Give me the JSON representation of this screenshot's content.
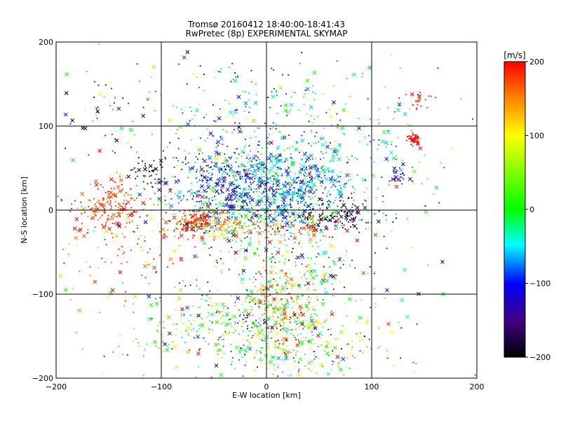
{
  "chart_data": {
    "type": "scatter",
    "title_line1": "Tromsø 20160412 18:40:00-18:41:43",
    "title_line2": "RwPretec (8p) EXPERIMENTAL SKYMAP",
    "xlabel": "E-W location [km]",
    "ylabel": "N-S location [km]",
    "xlim": [
      -200,
      200
    ],
    "ylim": [
      -200,
      200
    ],
    "xticks": [
      -200,
      -100,
      0,
      100,
      200
    ],
    "yticks": [
      -200,
      -100,
      0,
      100,
      200
    ],
    "grid": true,
    "colorbar": {
      "label": "[m/s]",
      "range": [
        -200,
        200
      ],
      "ticks": [
        200,
        100,
        0,
        -100,
        -200
      ]
    },
    "marker_types": [
      "dot",
      "cross"
    ],
    "clusters": [
      {
        "x": 0,
        "y": 20,
        "sx": 45,
        "sy": 30,
        "n": 700,
        "v": -60,
        "sv": 40
      },
      {
        "x": 25,
        "y": 30,
        "sx": 25,
        "sy": 25,
        "n": 250,
        "v": -70,
        "sv": 30
      },
      {
        "x": -20,
        "y": 35,
        "sx": 25,
        "sy": 20,
        "n": 150,
        "v": -130,
        "sv": 40
      },
      {
        "x": -65,
        "y": -15,
        "sx": 12,
        "sy": 8,
        "n": 130,
        "v": 190,
        "sv": 15
      },
      {
        "x": -150,
        "y": 5,
        "sx": 18,
        "sy": 15,
        "n": 180,
        "v": 180,
        "sv": 25
      },
      {
        "x": -35,
        "y": -15,
        "sx": 20,
        "sy": 10,
        "n": 130,
        "v": 90,
        "sv": 60
      },
      {
        "x": 60,
        "y": -5,
        "sx": 25,
        "sy": 10,
        "n": 120,
        "v": -200,
        "sv": 15
      },
      {
        "x": 30,
        "y": -25,
        "sx": 30,
        "sy": 8,
        "n": 80,
        "v": 170,
        "sv": 40
      },
      {
        "x": 15,
        "y": -110,
        "sx": 15,
        "sy": 25,
        "n": 170,
        "v": 150,
        "sv": 70
      },
      {
        "x": -30,
        "y": -140,
        "sx": 50,
        "sy": 25,
        "n": 350,
        "v": 10,
        "sv": 90
      },
      {
        "x": 30,
        "y": -160,
        "sx": 40,
        "sy": 25,
        "n": 250,
        "v": 20,
        "sv": 90
      },
      {
        "x": 30,
        "y": -70,
        "sx": 30,
        "sy": 20,
        "n": 120,
        "v": -30,
        "sv": 80
      },
      {
        "x": -60,
        "y": 30,
        "sx": 25,
        "sy": 30,
        "n": 140,
        "v": -120,
        "sv": 50
      },
      {
        "x": -110,
        "y": 45,
        "sx": 10,
        "sy": 8,
        "n": 40,
        "v": -190,
        "sv": 10
      },
      {
        "x": 139,
        "y": 85,
        "sx": 4,
        "sy": 3,
        "n": 40,
        "v": 200,
        "sv": 5
      },
      {
        "x": 140,
        "y": 130,
        "sx": 10,
        "sy": 6,
        "n": 25,
        "v": 200,
        "sv": 10
      },
      {
        "x": 125,
        "y": 40,
        "sx": 6,
        "sy": 5,
        "n": 25,
        "v": -150,
        "sv": 20
      },
      {
        "x": 120,
        "y": 75,
        "sx": 15,
        "sy": 20,
        "n": 40,
        "v": -40,
        "sv": 60
      },
      {
        "x": -130,
        "y": -40,
        "sx": 40,
        "sy": 30,
        "n": 120,
        "v": 170,
        "sv": 60
      },
      {
        "x": 0,
        "y": 120,
        "sx": 60,
        "sy": 30,
        "n": 180,
        "v": -40,
        "sv": 80
      },
      {
        "x": -150,
        "y": 130,
        "sx": 30,
        "sy": 30,
        "n": 40,
        "v": -100,
        "sv": 80
      },
      {
        "x": 0,
        "y": 0,
        "sx": 110,
        "sy": 110,
        "n": 380,
        "v": 0,
        "sv": 130
      }
    ]
  }
}
